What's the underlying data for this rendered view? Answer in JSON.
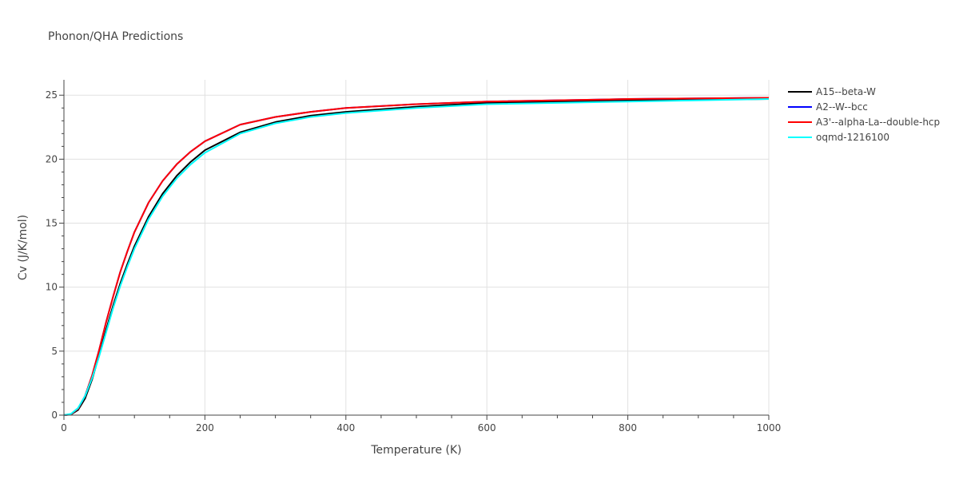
{
  "chart_data": {
    "type": "line",
    "title": "Phonon/QHA Predictions",
    "xlabel": "Temperature (K)",
    "ylabel": "Cv (J/K/mol)",
    "xlim": [
      0,
      1000
    ],
    "ylim": [
      0,
      26.2
    ],
    "x_ticks": [
      0,
      200,
      400,
      600,
      800,
      1000
    ],
    "y_ticks": [
      0,
      5,
      10,
      15,
      20,
      25
    ],
    "grid": true,
    "legend_position": "top-right",
    "series": [
      {
        "name": "A15--beta-W",
        "color": "#000000",
        "x": [
          0,
          10,
          20,
          30,
          40,
          50,
          60,
          70,
          80,
          90,
          100,
          120,
          140,
          160,
          180,
          200,
          250,
          300,
          350,
          400,
          500,
          600,
          800,
          1000
        ],
        "y": [
          0,
          0.05,
          0.4,
          1.3,
          2.8,
          4.7,
          6.7,
          8.6,
          10.3,
          11.8,
          13.2,
          15.5,
          17.3,
          18.7,
          19.8,
          20.7,
          22.1,
          22.9,
          23.4,
          23.7,
          24.1,
          24.4,
          24.6,
          24.7
        ]
      },
      {
        "name": "A2--W--bcc",
        "color": "#0000ff",
        "x": [
          0,
          10,
          20,
          30,
          40,
          50,
          60,
          70,
          80,
          90,
          100,
          120,
          140,
          160,
          180,
          200,
          250,
          300,
          350,
          400,
          500,
          600,
          800,
          1000
        ],
        "y": [
          0,
          0.08,
          0.5,
          1.5,
          3.1,
          5.1,
          7.3,
          9.3,
          11.2,
          12.8,
          14.3,
          16.6,
          18.3,
          19.6,
          20.6,
          21.4,
          22.7,
          23.3,
          23.7,
          24.0,
          24.3,
          24.5,
          24.7,
          24.8
        ]
      },
      {
        "name": "A3'--alpha-La--double-hcp",
        "color": "#ff0000",
        "x": [
          0,
          10,
          20,
          30,
          40,
          50,
          60,
          70,
          80,
          90,
          100,
          120,
          140,
          160,
          180,
          200,
          250,
          300,
          350,
          400,
          500,
          600,
          800,
          1000
        ],
        "y": [
          0,
          0.08,
          0.5,
          1.5,
          3.1,
          5.1,
          7.3,
          9.3,
          11.2,
          12.8,
          14.3,
          16.6,
          18.3,
          19.6,
          20.6,
          21.4,
          22.7,
          23.3,
          23.7,
          24.0,
          24.3,
          24.5,
          24.7,
          24.8
        ]
      },
      {
        "name": "oqmd-1216100",
        "color": "#00ffff",
        "x": [
          0,
          10,
          20,
          30,
          40,
          50,
          60,
          70,
          80,
          90,
          100,
          120,
          140,
          160,
          180,
          200,
          250,
          300,
          350,
          400,
          500,
          600,
          800,
          1000
        ],
        "y": [
          0,
          0.1,
          0.55,
          1.5,
          2.9,
          4.6,
          6.5,
          8.4,
          10.1,
          11.6,
          13.0,
          15.3,
          17.1,
          18.5,
          19.6,
          20.5,
          22.0,
          22.8,
          23.3,
          23.6,
          24.0,
          24.3,
          24.5,
          24.7
        ]
      }
    ]
  }
}
